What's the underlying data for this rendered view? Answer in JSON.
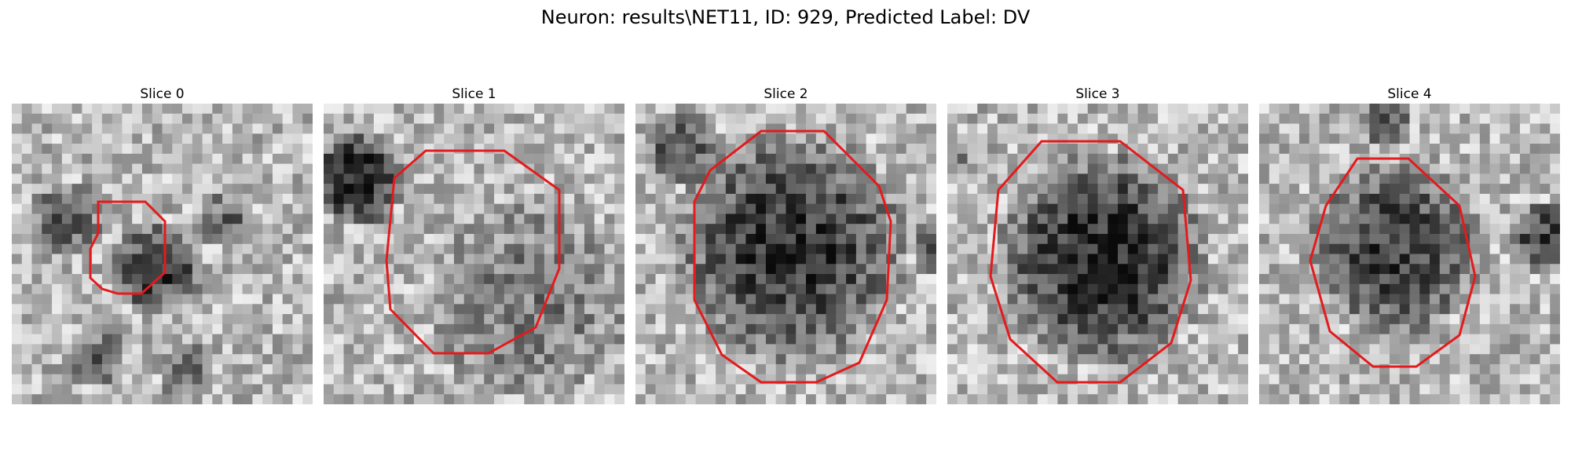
{
  "figure": {
    "title": "Neuron: results\\NET11, ID: 929, Predicted Label: DV"
  },
  "colors": {
    "contour": "#e41a1c",
    "colormap": "grayscale"
  },
  "panels": [
    {
      "title": "Slice 0"
    },
    {
      "title": "Slice 1"
    },
    {
      "title": "Slice 2"
    },
    {
      "title": "Slice 3"
    },
    {
      "title": "Slice 4"
    }
  ]
}
